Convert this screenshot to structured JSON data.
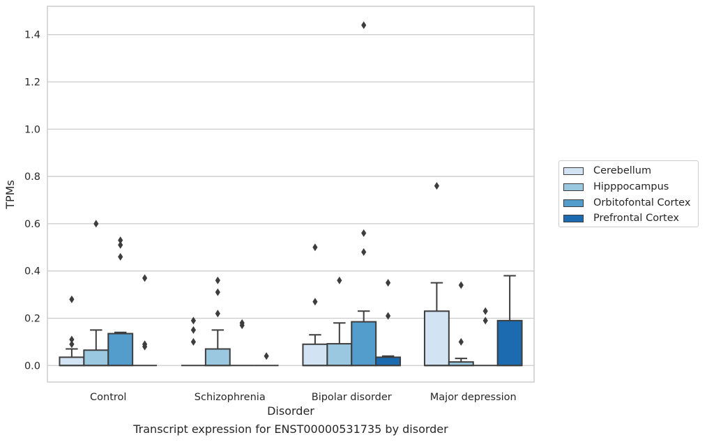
{
  "chart_data": {
    "type": "box",
    "xlabel": "Disorder",
    "ylabel": "TPMs",
    "caption": "Transcript expression for ENST00000531735 by disorder",
    "categories": [
      "Control",
      "Schizophrenia",
      "Bipolar disorder",
      "Major depression"
    ],
    "ylim": [
      -0.07,
      1.52
    ],
    "yticks": [
      "0.0",
      "0.2",
      "0.4",
      "0.6",
      "0.8",
      "1.0",
      "1.2",
      "1.4"
    ],
    "grid": true,
    "legend_position": "right",
    "series": [
      {
        "name": "Cerebellum",
        "color": "#d2e3f3",
        "boxes": [
          {
            "q1": 0.0,
            "median": 0.0,
            "q3": 0.035,
            "whisker_high": 0.07,
            "outliers": [
              0.28,
              0.11,
              0.09
            ]
          },
          {
            "q1": 0.0,
            "median": 0.0,
            "q3": 0.0,
            "whisker_high": 0.0,
            "outliers": [
              0.19,
              0.15,
              0.1
            ]
          },
          {
            "q1": 0.0,
            "median": 0.0,
            "q3": 0.09,
            "whisker_high": 0.13,
            "outliers": [
              0.5,
              0.27
            ]
          },
          {
            "q1": 0.0,
            "median": 0.0,
            "q3": 0.23,
            "whisker_high": 0.35,
            "outliers": [
              0.76
            ]
          }
        ]
      },
      {
        "name": "Hipppocampus",
        "color": "#9ac8e0",
        "boxes": [
          {
            "q1": 0.0,
            "median": 0.0,
            "q3": 0.065,
            "whisker_high": 0.15,
            "outliers": [
              0.6
            ]
          },
          {
            "q1": 0.0,
            "median": 0.0,
            "q3": 0.07,
            "whisker_high": 0.15,
            "outliers": [
              0.36,
              0.31,
              0.22
            ]
          },
          {
            "q1": 0.0,
            "median": 0.0,
            "q3": 0.092,
            "whisker_high": 0.18,
            "outliers": [
              0.36
            ]
          },
          {
            "q1": 0.0,
            "median": 0.0,
            "q3": 0.015,
            "whisker_high": 0.03,
            "outliers": [
              0.34,
              0.1
            ]
          }
        ]
      },
      {
        "name": "Orbitofontal Cortex",
        "color": "#529dcc",
        "boxes": [
          {
            "q1": 0.0,
            "median": 0.0,
            "q3": 0.135,
            "whisker_high": 0.14,
            "outliers": [
              0.53,
              0.51,
              0.46
            ]
          },
          {
            "q1": 0.0,
            "median": 0.0,
            "q3": 0.0,
            "whisker_high": 0.0,
            "outliers": [
              0.18,
              0.17
            ]
          },
          {
            "q1": 0.0,
            "median": 0.0,
            "q3": 0.185,
            "whisker_high": 0.23,
            "outliers": [
              1.44,
              0.56,
              0.48
            ]
          },
          {
            "q1": 0.0,
            "median": 0.0,
            "q3": 0.0,
            "whisker_high": 0.0,
            "outliers": [
              0.23,
              0.19
            ]
          }
        ]
      },
      {
        "name": "Prefrontal Cortex",
        "color": "#1c6aaf",
        "boxes": [
          {
            "q1": 0.0,
            "median": 0.0,
            "q3": 0.0,
            "whisker_high": 0.0,
            "outliers": [
              0.37,
              0.09,
              0.08
            ]
          },
          {
            "q1": 0.0,
            "median": 0.0,
            "q3": 0.0,
            "whisker_high": 0.0,
            "outliers": [
              0.04
            ]
          },
          {
            "q1": 0.0,
            "median": 0.0,
            "q3": 0.035,
            "whisker_high": 0.04,
            "outliers": [
              0.35,
              0.21
            ]
          },
          {
            "q1": 0.0,
            "median": 0.0,
            "q3": 0.19,
            "whisker_high": 0.38,
            "outliers": []
          }
        ]
      }
    ]
  }
}
